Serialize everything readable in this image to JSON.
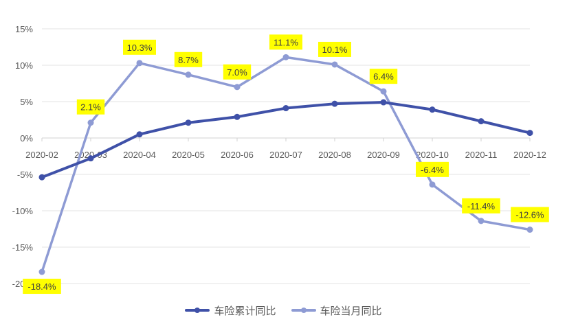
{
  "chart_data": {
    "type": "line",
    "title": "",
    "xlabel": "",
    "ylabel": "",
    "categories": [
      "2020-02",
      "2020-03",
      "2020-04",
      "2020-05",
      "2020-06",
      "2020-07",
      "2020-08",
      "2020-09",
      "2020-10",
      "2020-11",
      "2020-12"
    ],
    "ylim": [
      -20,
      15
    ],
    "yticks": [
      15,
      10,
      5,
      0,
      -5,
      -10,
      -15,
      -20
    ],
    "ytick_labels": [
      "15%",
      "10%",
      "5%",
      "0%",
      "-5%",
      "-10%",
      "-15%",
      "-20%"
    ],
    "grid": true,
    "legend_position": "bottom",
    "series": [
      {
        "name": "车险累计同比",
        "color": "#3f51a8",
        "values": [
          -5.4,
          -2.8,
          0.5,
          2.1,
          2.9,
          4.1,
          4.7,
          4.9,
          3.9,
          2.3,
          0.7
        ],
        "data_labels": false
      },
      {
        "name": "车险当月同比",
        "color": "#8e9bd4",
        "values": [
          -18.4,
          2.1,
          10.3,
          8.7,
          7.0,
          11.1,
          10.1,
          6.4,
          -6.4,
          -11.4,
          -12.6
        ],
        "data_labels": [
          "-18.4%",
          "2.1%",
          "10.3%",
          "8.7%",
          "7.0%",
          "11.1%",
          "10.1%",
          "6.4%",
          "-6.4%",
          "-11.4%",
          "-12.6%"
        ],
        "label_background": "#ffff00"
      }
    ]
  },
  "legend": {
    "items": [
      {
        "label": "车险累计同比",
        "color": "#3f51a8"
      },
      {
        "label": "车险当月同比",
        "color": "#8e9bd4"
      }
    ]
  }
}
